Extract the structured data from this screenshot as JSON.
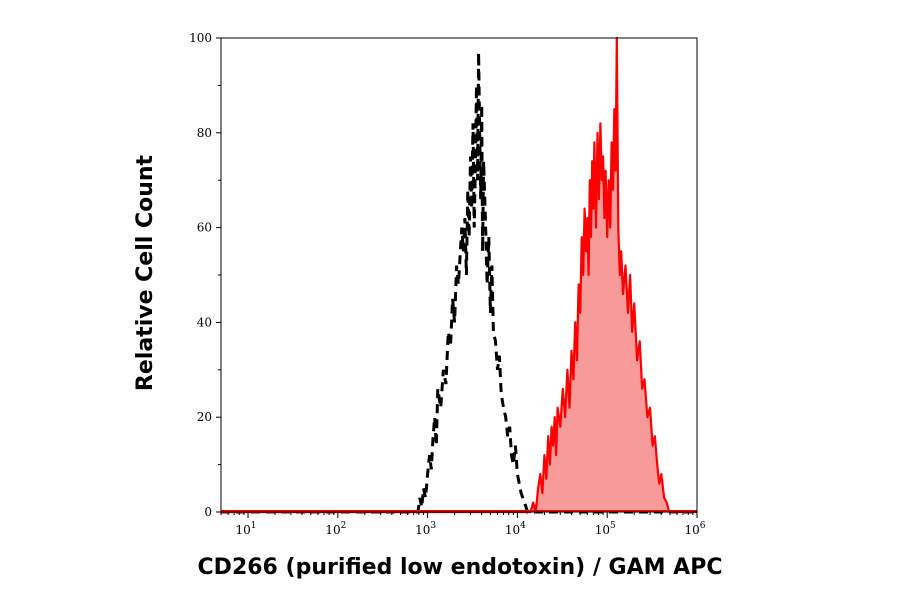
{
  "chart_data": {
    "type": "area",
    "xlabel": "CD266 (purified low endotoxin) / GAM APC",
    "ylabel": "Relative Cell Count",
    "x_scale": "log",
    "xlim": [
      5,
      1000000
    ],
    "ylim": [
      0,
      100
    ],
    "x_ticks": [
      {
        "base": "10",
        "exp": "1",
        "value": 10
      },
      {
        "base": "10",
        "exp": "2",
        "value": 100
      },
      {
        "base": "10",
        "exp": "3",
        "value": 1000
      },
      {
        "base": "10",
        "exp": "4",
        "value": 10000
      },
      {
        "base": "10",
        "exp": "5",
        "value": 100000
      },
      {
        "base": "10",
        "exp": "6",
        "value": 1000000
      }
    ],
    "y_ticks": [
      {
        "label": "0",
        "value": 0
      },
      {
        "label": "20",
        "value": 20
      },
      {
        "label": "40",
        "value": 40
      },
      {
        "label": "60",
        "value": 60
      },
      {
        "label": "80",
        "value": 80
      },
      {
        "label": "100",
        "value": 100
      }
    ],
    "grid": false,
    "legend": "none",
    "series": [
      {
        "style": "dashed-line",
        "color": "#000000",
        "points": [
          [
            5,
            0
          ],
          [
            780,
            0
          ],
          [
            820,
            3
          ],
          [
            860,
            1
          ],
          [
            900,
            5
          ],
          [
            950,
            3
          ],
          [
            1000,
            8
          ],
          [
            1050,
            12
          ],
          [
            1100,
            9
          ],
          [
            1150,
            16
          ],
          [
            1200,
            20
          ],
          [
            1250,
            14
          ],
          [
            1300,
            26
          ],
          [
            1400,
            22
          ],
          [
            1500,
            30
          ],
          [
            1600,
            27
          ],
          [
            1700,
            38
          ],
          [
            1800,
            35
          ],
          [
            1900,
            45
          ],
          [
            2000,
            40
          ],
          [
            2100,
            52
          ],
          [
            2200,
            48
          ],
          [
            2400,
            60
          ],
          [
            2500,
            55
          ],
          [
            2600,
            62
          ],
          [
            2700,
            50
          ],
          [
            2800,
            68
          ],
          [
            2900,
            58
          ],
          [
            3000,
            75
          ],
          [
            3100,
            64
          ],
          [
            3200,
            82
          ],
          [
            3300,
            60
          ],
          [
            3400,
            72
          ],
          [
            3500,
            90
          ],
          [
            3600,
            70
          ],
          [
            3700,
            97
          ],
          [
            3800,
            80
          ],
          [
            3900,
            66
          ],
          [
            4000,
            86
          ],
          [
            4100,
            55
          ],
          [
            4200,
            74
          ],
          [
            4400,
            62
          ],
          [
            4600,
            48
          ],
          [
            4800,
            58
          ],
          [
            5000,
            42
          ],
          [
            5200,
            52
          ],
          [
            5400,
            38
          ],
          [
            5700,
            36
          ],
          [
            6000,
            30
          ],
          [
            6300,
            33
          ],
          [
            6600,
            25
          ],
          [
            7000,
            22
          ],
          [
            7400,
            20
          ],
          [
            7800,
            16
          ],
          [
            8200,
            18
          ],
          [
            8600,
            12
          ],
          [
            9000,
            10
          ],
          [
            9500,
            14
          ],
          [
            10000,
            8
          ],
          [
            11000,
            4
          ],
          [
            12000,
            2
          ],
          [
            13000,
            0
          ],
          [
            1000000,
            0
          ]
        ]
      },
      {
        "style": "filled",
        "color": "#ff0000",
        "fill": "#f99a9a",
        "points": [
          [
            5,
            0
          ],
          [
            14000,
            0
          ],
          [
            15000,
            2
          ],
          [
            16000,
            0
          ],
          [
            17000,
            5
          ],
          [
            18000,
            8
          ],
          [
            19000,
            4
          ],
          [
            20000,
            12
          ],
          [
            21000,
            7
          ],
          [
            22000,
            16
          ],
          [
            23000,
            10
          ],
          [
            24000,
            18
          ],
          [
            25000,
            14
          ],
          [
            26000,
            20
          ],
          [
            27000,
            12
          ],
          [
            28000,
            22
          ],
          [
            30000,
            18
          ],
          [
            32000,
            26
          ],
          [
            34000,
            20
          ],
          [
            36000,
            30
          ],
          [
            38000,
            22
          ],
          [
            40000,
            34
          ],
          [
            42000,
            28
          ],
          [
            44000,
            40
          ],
          [
            46000,
            32
          ],
          [
            48000,
            48
          ],
          [
            50000,
            42
          ],
          [
            52000,
            58
          ],
          [
            54000,
            50
          ],
          [
            56000,
            64
          ],
          [
            58000,
            55
          ],
          [
            60000,
            62
          ],
          [
            62000,
            50
          ],
          [
            64000,
            70
          ],
          [
            66000,
            58
          ],
          [
            68000,
            74
          ],
          [
            70000,
            64
          ],
          [
            72000,
            78
          ],
          [
            75000,
            60
          ],
          [
            78000,
            80
          ],
          [
            81000,
            66
          ],
          [
            84000,
            82
          ],
          [
            87000,
            70
          ],
          [
            90000,
            75
          ],
          [
            93000,
            62
          ],
          [
            96000,
            72
          ],
          [
            100000,
            58
          ],
          [
            104000,
            70
          ],
          [
            108000,
            60
          ],
          [
            112000,
            78
          ],
          [
            116000,
            68
          ],
          [
            120000,
            85
          ],
          [
            124000,
            72
          ],
          [
            128000,
            100
          ],
          [
            133000,
            60
          ],
          [
            138000,
            50
          ],
          [
            143000,
            55
          ],
          [
            150000,
            46
          ],
          [
            160000,
            52
          ],
          [
            170000,
            42
          ],
          [
            180000,
            50
          ],
          [
            190000,
            38
          ],
          [
            200000,
            44
          ],
          [
            215000,
            32
          ],
          [
            230000,
            36
          ],
          [
            245000,
            26
          ],
          [
            260000,
            28
          ],
          [
            280000,
            20
          ],
          [
            300000,
            22
          ],
          [
            320000,
            14
          ],
          [
            340000,
            16
          ],
          [
            360000,
            10
          ],
          [
            380000,
            6
          ],
          [
            400000,
            8
          ],
          [
            430000,
            3
          ],
          [
            460000,
            2
          ],
          [
            490000,
            0
          ],
          [
            1000000,
            0
          ]
        ]
      }
    ]
  }
}
